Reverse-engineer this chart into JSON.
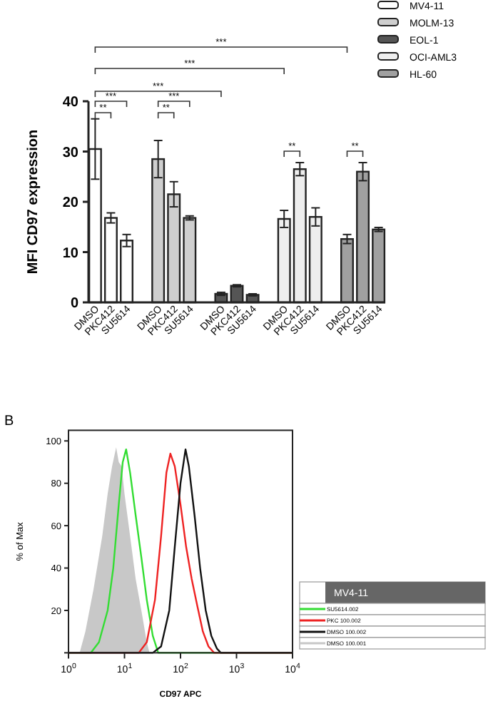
{
  "chart_data": [
    {
      "type": "bar",
      "ylabel": "MFI CD97 expression",
      "categories": [
        "DMSO",
        "PKC412",
        "SU5614",
        null,
        "DMSO",
        "PKC412",
        "SU5614",
        null,
        "DMSO",
        "PKC412",
        "SU5614",
        null,
        "DMSO",
        "PKC412",
        "SU5614",
        null,
        "DMSO",
        "PKC412",
        "SU5614"
      ],
      "series": [
        {
          "name": "MV4-11",
          "color": "#ffffff",
          "values": [
            30.5,
            16.8,
            12.3,
            null,
            null,
            null,
            null,
            null,
            null,
            null,
            null,
            null,
            null,
            null,
            null,
            null,
            null,
            null,
            null
          ],
          "errors": [
            6,
            1,
            1.2,
            null,
            null,
            null,
            null,
            null,
            null,
            null,
            null,
            null,
            null,
            null,
            null,
            null,
            null,
            null,
            null
          ]
        },
        {
          "name": "MOLM-13",
          "color": "#cfcfcf",
          "values": [
            null,
            null,
            null,
            null,
            28.5,
            21.5,
            16.8,
            null,
            null,
            null,
            null,
            null,
            null,
            null,
            null,
            null,
            null,
            null,
            null
          ],
          "errors": [
            null,
            null,
            null,
            null,
            3.7,
            2.5,
            0.4,
            null,
            null,
            null,
            null,
            null,
            null,
            null,
            null,
            null,
            null,
            null,
            null
          ]
        },
        {
          "name": "EOL-1",
          "color": "#555555",
          "values": [
            null,
            null,
            null,
            null,
            null,
            null,
            null,
            null,
            1.7,
            3.3,
            1.5,
            null,
            null,
            null,
            null,
            null,
            null,
            null,
            null
          ],
          "errors": [
            null,
            null,
            null,
            null,
            null,
            null,
            null,
            null,
            0.3,
            0.2,
            0.2,
            null,
            null,
            null,
            null,
            null,
            null,
            null,
            null
          ]
        },
        {
          "name": "OCI-AML3",
          "color": "#eeeeee",
          "values": [
            null,
            null,
            null,
            null,
            null,
            null,
            null,
            null,
            null,
            null,
            null,
            null,
            16.6,
            26.5,
            17,
            null,
            null,
            null,
            null
          ],
          "errors": [
            null,
            null,
            null,
            null,
            null,
            null,
            null,
            null,
            null,
            null,
            null,
            null,
            1.7,
            1.3,
            1.8,
            null,
            null,
            null,
            null
          ]
        },
        {
          "name": "HL-60",
          "color": "#a0a0a0",
          "values": [
            null,
            null,
            null,
            null,
            null,
            null,
            null,
            null,
            null,
            null,
            null,
            null,
            null,
            null,
            null,
            null,
            12.6,
            26,
            14.5
          ],
          "errors": [
            null,
            null,
            null,
            null,
            null,
            null,
            null,
            null,
            null,
            null,
            null,
            null,
            null,
            null,
            null,
            null,
            0.9,
            1.8,
            0.4
          ]
        }
      ],
      "ylim": [
        0,
        40
      ],
      "yticks": [
        0,
        10,
        20,
        30,
        40
      ],
      "legend": "top right",
      "annotations": [
        "***",
        "***",
        "***",
        "***",
        "**",
        "***",
        "**",
        "**",
        "**"
      ]
    },
    {
      "type": "line",
      "annotations": [
        "B"
      ],
      "xlabel": "CD97 APC",
      "ylabel": "% of Max",
      "legend": "right",
      "legend_title": "MV4-11",
      "log": "x",
      "xlim": [
        1,
        10000
      ],
      "xticks": [
        {
          "value": 1,
          "label": "10$^{0}$"
        },
        {
          "value": 10,
          "label": "10$^{1}$"
        },
        {
          "value": 100,
          "label": "10$^{2}$"
        },
        {
          "value": 1000,
          "label": "10$^{3}$"
        },
        {
          "value": 10000,
          "label": "10$^{4}$"
        }
      ],
      "ylim": [
        0,
        105
      ],
      "yticks": [
        {
          "value": 0,
          "label": null
        },
        20,
        40,
        60,
        80,
        100
      ],
      "series": [
        {
          "name": "SU5614.002",
          "color": "#33dd33",
          "x": [
            1,
            2.5,
            3.5,
            5,
            6.3,
            7.9,
            9.3,
            10.7,
            12.6,
            15.8,
            20,
            25,
            32,
            40,
            10000
          ],
          "values": [
            0,
            0,
            5,
            20,
            40,
            70,
            90,
            96,
            85,
            65,
            45,
            25,
            8,
            0,
            0
          ]
        },
        {
          "name": "PKC 100.002",
          "color": "#ee2222",
          "x": [
            1,
            18,
            25,
            35,
            45,
            56,
            66,
            79,
            100,
            126,
            158,
            200,
            251,
            316,
            398,
            10000
          ],
          "values": [
            0,
            0,
            5,
            25,
            55,
            85,
            94,
            88,
            70,
            50,
            35,
            22,
            10,
            3,
            0,
            0
          ]
        },
        {
          "name": "DMSO 100.002",
          "color": "#111111",
          "x": [
            1,
            32,
            45,
            63,
            79,
            100,
            123,
            141,
            178,
            224,
            282,
            355,
            447,
            525,
            10000
          ],
          "values": [
            0,
            0,
            3,
            20,
            50,
            80,
            96,
            88,
            65,
            40,
            20,
            8,
            2,
            0,
            0
          ]
        },
        {
          "name": "DMSO 100.001",
          "type": "area",
          "color": "#c8c8c8",
          "x": [
            1,
            1.58,
            2,
            2.8,
            4,
            5,
            6,
            7.1,
            7.9,
            8.9,
            10,
            12.6,
            15.8,
            20,
            25,
            28,
            10000
          ],
          "values": [
            0,
            0,
            10,
            30,
            55,
            75,
            88,
            97,
            90,
            88,
            75,
            55,
            35,
            20,
            5,
            0,
            0
          ]
        }
      ]
    }
  ]
}
